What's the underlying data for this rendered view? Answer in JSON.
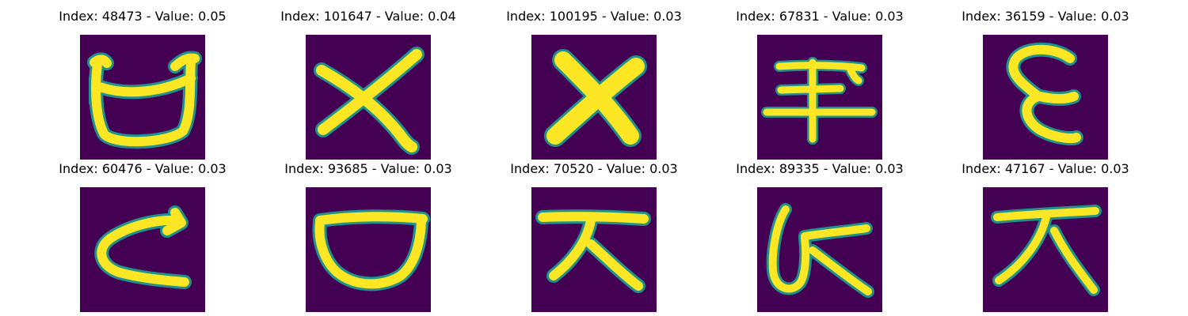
{
  "figure": {
    "background": "#ffffff",
    "colormap": {
      "low": "#440154",
      "mid": "#21918c",
      "high": "#fde725"
    },
    "panels": [
      {
        "index": "48473",
        "value": "0.05",
        "caption": "Index: 48473 - Value: 0.05"
      },
      {
        "index": "101647",
        "value": "0.04",
        "caption": "Index: 101647 - Value: 0.04"
      },
      {
        "index": "100195",
        "value": "0.03",
        "caption": "Index: 100195 - Value: 0.03"
      },
      {
        "index": "67831",
        "value": "0.03",
        "caption": "Index: 67831 - Value: 0.03"
      },
      {
        "index": "36159",
        "value": "0.03",
        "caption": "Index: 36159 - Value: 0.03"
      },
      {
        "index": "60476",
        "value": "0.03",
        "caption": "Index: 60476 - Value: 0.03"
      },
      {
        "index": "93685",
        "value": "0.03",
        "caption": "Index: 93685 - Value: 0.03"
      },
      {
        "index": "70520",
        "value": "0.03",
        "caption": "Index: 70520 - Value: 0.03"
      },
      {
        "index": "89335",
        "value": "0.03",
        "caption": "Index: 89335 - Value: 0.03"
      },
      {
        "index": "47167",
        "value": "0.03",
        "caption": "Index: 47167 - Value: 0.03"
      }
    ]
  }
}
